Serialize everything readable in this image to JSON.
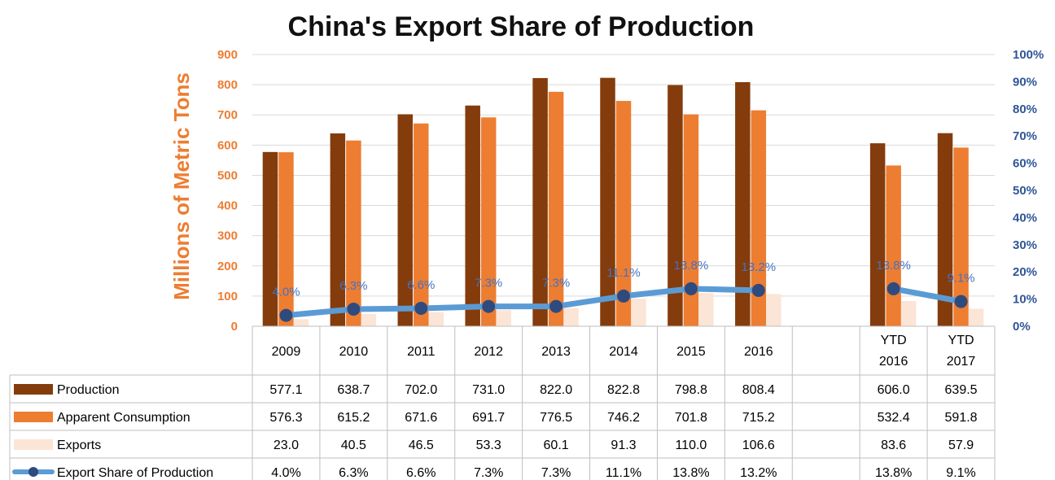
{
  "chart_data": {
    "type": "bar",
    "title": "China's Export Share of Production",
    "ylabel": "Millions of Metric Tons",
    "ylim": [
      0,
      900
    ],
    "y_ticks": [
      "0",
      "100",
      "200",
      "300",
      "400",
      "500",
      "600",
      "700",
      "800",
      "900"
    ],
    "y2lim": [
      0,
      1
    ],
    "y2_ticks": [
      "0%",
      "10%",
      "20%",
      "30%",
      "40%",
      "50%",
      "60%",
      "70%",
      "80%",
      "90%",
      "100%"
    ],
    "categories": [
      [
        "2009"
      ],
      [
        "2010"
      ],
      [
        "2011"
      ],
      [
        "2012"
      ],
      [
        "2013"
      ],
      [
        "2014"
      ],
      [
        "2015"
      ],
      [
        "2016"
      ],
      [
        ""
      ],
      [
        "YTD",
        "2016"
      ],
      [
        "YTD",
        "2017"
      ]
    ],
    "series": [
      {
        "name": "Production",
        "type": "bar",
        "color": "#843C0C",
        "values": [
          577.1,
          638.7,
          702.0,
          731.0,
          822.0,
          822.8,
          798.8,
          808.4,
          null,
          606.0,
          639.5
        ],
        "table": [
          "577.1",
          "638.7",
          "702.0",
          "731.0",
          "822.0",
          "822.8",
          "798.8",
          "808.4",
          "",
          "606.0",
          "639.5"
        ]
      },
      {
        "name": "Apparent Consumption",
        "type": "bar",
        "color": "#ED7D31",
        "values": [
          576.3,
          615.2,
          671.6,
          691.7,
          776.5,
          746.2,
          701.8,
          715.2,
          null,
          532.4,
          591.8
        ],
        "table": [
          "576.3",
          "615.2",
          "671.6",
          "691.7",
          "776.5",
          "746.2",
          "701.8",
          "715.2",
          "",
          "532.4",
          "591.8"
        ]
      },
      {
        "name": "Exports",
        "type": "bar",
        "color": "#FBE5D6",
        "values": [
          23.0,
          40.5,
          46.5,
          53.3,
          60.1,
          91.3,
          110.0,
          106.6,
          null,
          83.6,
          57.9
        ],
        "table": [
          "23.0",
          "40.5",
          "46.5",
          "53.3",
          "60.1",
          "91.3",
          "110.0",
          "106.6",
          "",
          "83.6",
          "57.9"
        ]
      },
      {
        "name": "Export Share of Production",
        "type": "line",
        "axis": "right",
        "color": "#5B9BD5",
        "marker_color": "#2F4A7D",
        "values": [
          0.04,
          0.063,
          0.066,
          0.073,
          0.073,
          0.111,
          0.138,
          0.132,
          null,
          0.138,
          0.091
        ],
        "labels": [
          "4.0%",
          "6.3%",
          "6.6%",
          "7.3%",
          "7.3%",
          "11.1%",
          "13.8%",
          "13.2%",
          "",
          "13.8%",
          "9.1%"
        ],
        "table": [
          "4.0%",
          "6.3%",
          "6.6%",
          "7.3%",
          "7.3%",
          "11.1%",
          "13.8%",
          "13.2%",
          "",
          "13.8%",
          "9.1%"
        ]
      }
    ],
    "grid": true,
    "legend": "data-table"
  }
}
